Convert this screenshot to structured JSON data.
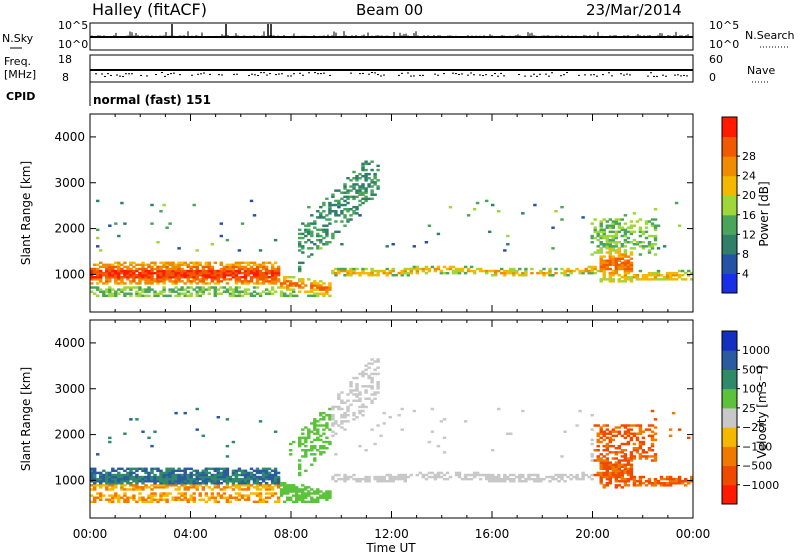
{
  "header": {
    "station": "Halley (fitACF)",
    "beam": "Beam 00",
    "date": "23/Mar/2014"
  },
  "strips": {
    "nsky_label": "N.Sky",
    "nsky_ticks": [
      "10^5",
      "10^0"
    ],
    "nsearch_label": "N.Search",
    "nsearch_ticks": [
      "10^5",
      "10^0"
    ],
    "freq_label_1": "Freq.",
    "freq_label_2": "[MHz]",
    "freq_ticks": [
      "18",
      "8"
    ],
    "nave_label": "Nave",
    "nave_ticks": [
      "60",
      "0"
    ],
    "cpid_label": "CPID",
    "cpid_text": "normal (fast) 151"
  },
  "chart_data": [
    {
      "type": "heatmap",
      "panel": "power",
      "ylabel": "Slant Range [km]",
      "ylim": [
        180,
        4500
      ],
      "yticks": [
        "1000",
        "2000",
        "3000",
        "4000"
      ],
      "xlim": [
        0,
        24
      ],
      "colorbar_label": "Power [dB]",
      "colorbar_ticks": [
        "4",
        "8",
        "12",
        "16",
        "20",
        "24",
        "28"
      ],
      "colors": [
        "#1a2ee6",
        "#2453a6",
        "#2f7f6a",
        "#4aa55a",
        "#9fd63c",
        "#f5b800",
        "#f08a00",
        "#f05a00",
        "#ff1a00"
      ]
    },
    {
      "type": "heatmap",
      "panel": "velocity",
      "ylabel": "Slant Range [km]",
      "ylim": [
        180,
        4500
      ],
      "yticks": [
        "1000",
        "2000",
        "3000",
        "4000"
      ],
      "xlim": [
        0,
        24
      ],
      "xticks": [
        "00:00",
        "04:00",
        "08:00",
        "12:00",
        "16:00",
        "20:00",
        "00:00"
      ],
      "xlabel": "Time UT",
      "colorbar_label": "Velocity [m s⁻¹]",
      "colorbar_ticks": [
        "1000",
        "500",
        "100",
        "25",
        "−25",
        "−100",
        "−500",
        "−1000"
      ],
      "colors": [
        "#1530c0",
        "#2a5aa0",
        "#2f8a6a",
        "#5cc23c",
        "#c8c8c8",
        "#f5b800",
        "#f07a00",
        "#f04a00",
        "#ff1a00"
      ]
    }
  ]
}
